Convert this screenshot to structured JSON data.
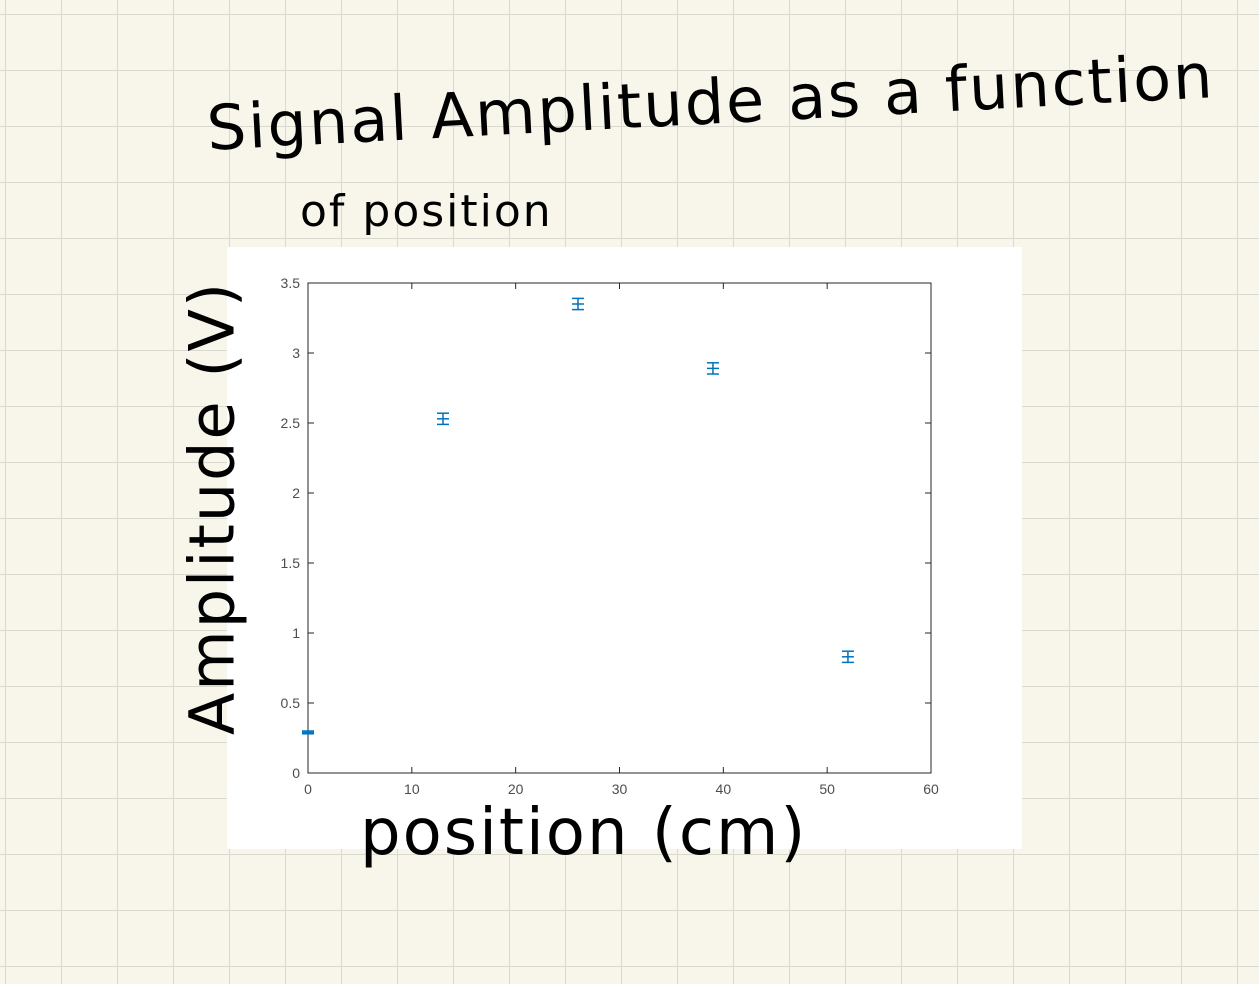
{
  "chart_data": {
    "type": "scatter",
    "title": "Signal Amplitude as a function of position",
    "title_lines": [
      "Signal Amplitude as a function",
      "of position"
    ],
    "xlabel": "position (cm)",
    "ylabel": "Amplitude (V)",
    "xlim": [
      0,
      60
    ],
    "ylim": [
      0,
      3.5
    ],
    "xticks": [
      0,
      10,
      20,
      30,
      40,
      50,
      60
    ],
    "yticks": [
      0,
      0.5,
      1,
      1.5,
      2,
      2.5,
      3,
      3.5
    ],
    "grid": false,
    "marker_color": "#0072bd",
    "error_bars": true,
    "points": [
      {
        "x": 0,
        "y": 0.29,
        "err": 0.01
      },
      {
        "x": 13,
        "y": 2.53,
        "err": 0.04
      },
      {
        "x": 26,
        "y": 3.35,
        "err": 0.04
      },
      {
        "x": 39,
        "y": 2.89,
        "err": 0.04
      },
      {
        "x": 52,
        "y": 0.83,
        "err": 0.04
      }
    ]
  }
}
